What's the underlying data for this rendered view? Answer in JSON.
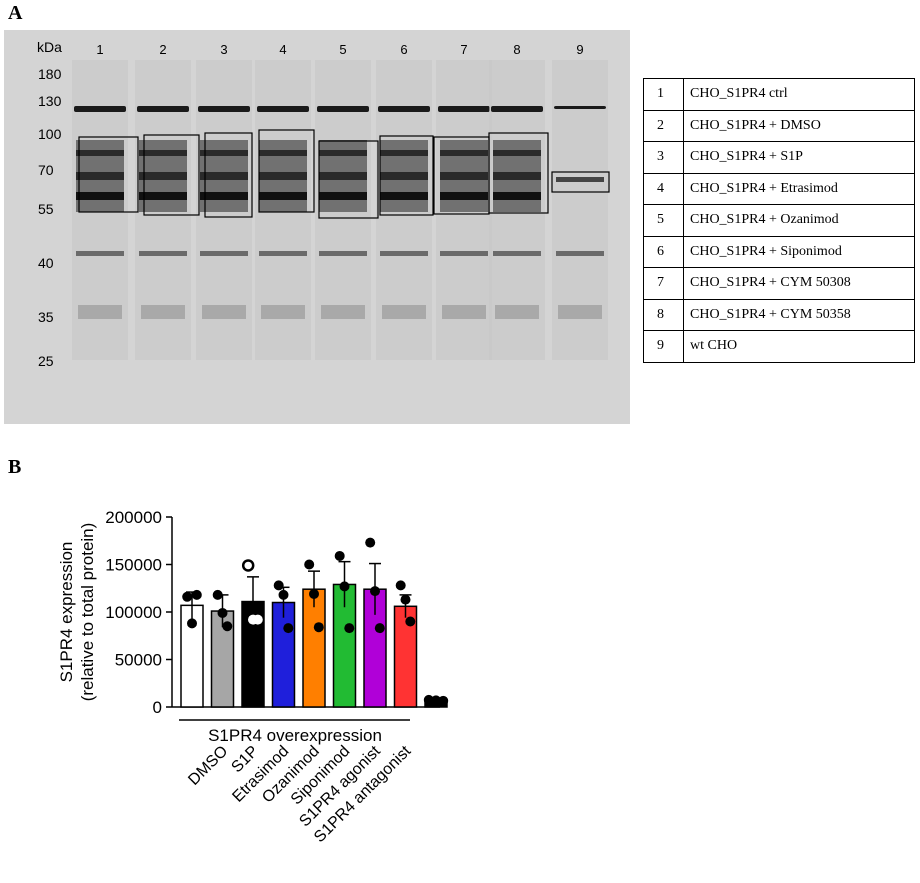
{
  "panels": {
    "a": "A",
    "b": "B"
  },
  "blot": {
    "kda_label": "kDa",
    "lane_numbers": [
      "1",
      "2",
      "3",
      "4",
      "5",
      "6",
      "7",
      "8",
      "9"
    ],
    "markers": [
      "180",
      "130",
      "100",
      "70",
      "55",
      "40",
      "35",
      "25"
    ]
  },
  "legend": [
    {
      "num": "1",
      "label": "CHO_S1PR4 ctrl"
    },
    {
      "num": "2",
      "label": "CHO_S1PR4 + DMSO"
    },
    {
      "num": "3",
      "label": "CHO_S1PR4 + S1P"
    },
    {
      "num": "4",
      "label": "CHO_S1PR4 + Etrasimod"
    },
    {
      "num": "5",
      "label": "CHO_S1PR4 + Ozanimod"
    },
    {
      "num": "6",
      "label": "CHO_S1PR4 + Siponimod"
    },
    {
      "num": "7",
      "label": "CHO_S1PR4 + CYM 50308"
    },
    {
      "num": "8",
      "label": "CHO_S1PR4 + CYM 50358"
    },
    {
      "num": "9",
      "label": "wt CHO"
    }
  ],
  "chart_data": {
    "type": "bar",
    "ylabel_line1": "S1PR4 expression",
    "ylabel_line2": "(relative to total protein)",
    "ylim": [
      0,
      200000
    ],
    "yticks": [
      "0",
      "50000",
      "100000",
      "150000",
      "200000"
    ],
    "group_label": "S1PR4 overexpression",
    "categories": [
      "",
      "DMSO",
      "S1P",
      "Etrasimod",
      "Ozanimod",
      "Siponimod",
      "S1PR4 agonist",
      "S1PR4 antagonist",
      ""
    ],
    "values": [
      107000,
      101000,
      111000,
      110000,
      124000,
      129000,
      124000,
      106000,
      6000
    ],
    "errors": [
      14000,
      17000,
      26000,
      16000,
      19000,
      24000,
      27000,
      12000,
      1500
    ],
    "colors": [
      "#ffffff",
      "#a6a6a6",
      "#000000",
      "#1f1fdb",
      "#ff7f00",
      "#22bb33",
      "#b000d8",
      "#ff3333",
      "#000000"
    ],
    "points": [
      [
        116000,
        88000,
        118000
      ],
      [
        118000,
        99000,
        85000
      ],
      [
        149000,
        92000,
        92000
      ],
      [
        128000,
        118000,
        83000
      ],
      [
        150000,
        119000,
        84000
      ],
      [
        159000,
        127000,
        83000
      ],
      [
        173000,
        122000,
        83000
      ],
      [
        128000,
        113000,
        90000
      ],
      [
        7500,
        7000,
        6500
      ]
    ]
  }
}
